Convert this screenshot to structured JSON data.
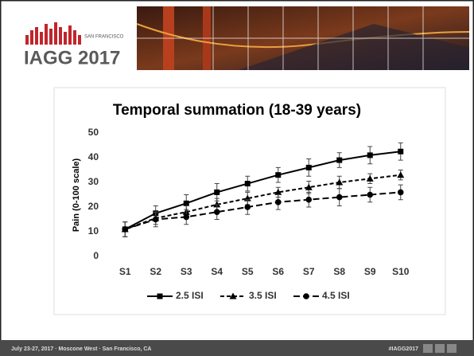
{
  "header": {
    "logo_city": "SAN FRANCISCO",
    "logo_text": "IAGG 2017"
  },
  "footer": {
    "left": "July 23-27, 2017 · Moscone West · San Francisco, CA",
    "right": "#IAGG2017"
  },
  "chart_data": {
    "type": "line",
    "title": "Temporal summation (18-39 years)",
    "y_label": "Pain (0-100 scale)",
    "categories": [
      "S1",
      "S2",
      "S3",
      "S4",
      "S5",
      "S6",
      "S7",
      "S8",
      "S9",
      "S10"
    ],
    "series": [
      {
        "name": "2.5 ISI",
        "color": "#000000",
        "line_style": "solid",
        "marker": "square",
        "values": [
          11,
          17.5,
          21.5,
          26,
          29.5,
          33,
          36,
          39,
          41,
          42.5
        ],
        "errors": [
          3,
          3,
          3.5,
          3.5,
          3,
          3,
          3.5,
          3,
          3.5,
          3.5
        ]
      },
      {
        "name": "3.5 ISI",
        "color": "#000000",
        "line_style": "dashed",
        "marker": "triangle",
        "values": [
          11,
          15.5,
          18,
          21,
          23.5,
          26,
          28,
          30,
          31.5,
          33
        ],
        "errors": [
          3,
          2.5,
          2.5,
          2.5,
          2.5,
          2,
          2.5,
          2.5,
          2,
          2
        ]
      },
      {
        "name": "4.5 ISI",
        "color": "#000000",
        "line_style": "longdash",
        "marker": "circle",
        "values": [
          11,
          15,
          16,
          18,
          20,
          22,
          23,
          24,
          25,
          26
        ],
        "errors": [
          3,
          3,
          3,
          3,
          3,
          3,
          3,
          3.5,
          3,
          3
        ]
      }
    ],
    "ylim": [
      0,
      50
    ],
    "yticks": [
      0,
      10,
      20,
      30,
      40,
      50
    ],
    "grid": false,
    "legend": "bottom"
  }
}
